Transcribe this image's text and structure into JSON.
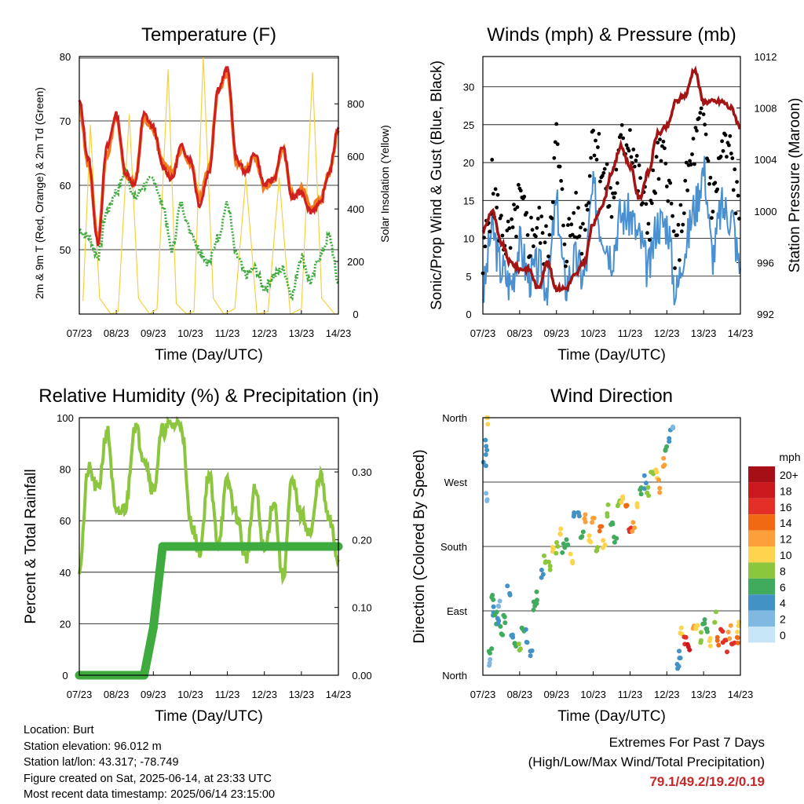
{
  "xaxis_ticks": [
    "07/23",
    "08/23",
    "09/23",
    "10/23",
    "11/23",
    "12/23",
    "13/23",
    "14/23"
  ],
  "chart_data": [
    {
      "id": "temperature",
      "type": "line",
      "title": "Temperature (F)",
      "xlabel": "Time (Day/UTC)",
      "ylabel": "2m & 9m T (Red, Orange) & 2m Td (Green)",
      "ylabel_right": "Solar Insolation (Yellow)",
      "ylim": [
        40,
        80
      ],
      "yticks": [
        50,
        60,
        70,
        80
      ],
      "ylim_right": [
        0,
        980
      ],
      "yticks_right": [
        0,
        200,
        400,
        600,
        800
      ],
      "x_days": [
        0,
        0.25,
        0.5,
        0.75,
        1,
        1.25,
        1.5,
        1.75,
        2,
        2.25,
        2.5,
        2.75,
        3,
        3.25,
        3.5,
        3.75,
        4,
        4.25,
        4.5,
        4.75,
        5,
        5.25,
        5.5,
        5.75,
        6,
        6.25,
        6.5,
        6.75,
        7
      ],
      "series": [
        {
          "name": "2m T",
          "color": "#d01f1f",
          "values": [
            73,
            64,
            51,
            66,
            71,
            62,
            60,
            71,
            69,
            63,
            61,
            66,
            64,
            57,
            62,
            75,
            78,
            64,
            62,
            65,
            60,
            61,
            66,
            58,
            59,
            56,
            57,
            62,
            69
          ]
        },
        {
          "name": "9m T",
          "color": "#f47a1f",
          "values": [
            72.5,
            63,
            52,
            65,
            70.5,
            61.5,
            60.5,
            70.5,
            68.5,
            63.5,
            62,
            65.5,
            63.5,
            58,
            62.5,
            74.5,
            77.5,
            63.5,
            62.5,
            64.5,
            59.5,
            61,
            65.5,
            58.5,
            59.5,
            56.5,
            57.5,
            62,
            68.5
          ]
        },
        {
          "name": "2m Td",
          "color": "#3fab3f",
          "values": [
            53,
            52,
            49,
            56,
            59,
            62,
            58,
            60,
            61,
            57,
            50,
            57,
            53,
            50,
            48,
            52,
            57,
            49,
            46,
            47,
            44,
            46,
            47,
            43,
            49,
            45,
            49,
            52,
            45
          ]
        },
        {
          "name": "Solar Insolation",
          "color": "#f5d142",
          "axis": "right",
          "values": [
            [
              0.1,
              50
            ],
            [
              0.3,
              720
            ],
            [
              0.55,
              60
            ],
            [
              0.85,
              0
            ],
            [
              1.05,
              10
            ],
            [
              1.35,
              760
            ],
            [
              1.6,
              60
            ],
            [
              1.9,
              0
            ],
            [
              2.1,
              20
            ],
            [
              2.4,
              930
            ],
            [
              2.62,
              40
            ],
            [
              2.9,
              0
            ],
            [
              3.1,
              10
            ],
            [
              3.35,
              980
            ],
            [
              3.62,
              60
            ],
            [
              3.9,
              0
            ],
            [
              4.2,
              20
            ],
            [
              4.5,
              520
            ],
            [
              4.8,
              0
            ],
            [
              5.1,
              10
            ],
            [
              5.4,
              520
            ],
            [
              5.7,
              0
            ],
            [
              6.0,
              20
            ],
            [
              6.3,
              920
            ],
            [
              6.55,
              60
            ],
            [
              6.9,
              0
            ]
          ]
        }
      ]
    },
    {
      "id": "winds",
      "type": "line",
      "title": "Winds (mph) & Pressure (mb)",
      "xlabel": "Time (Day/UTC)",
      "ylabel": "Sonic/Prop Wind & Gust (Blue, Black)",
      "ylabel_right": "Station Pressure (Maroon)",
      "ylim": [
        0,
        34
      ],
      "yticks": [
        0,
        5,
        10,
        15,
        20,
        25,
        30
      ],
      "ylim_right": [
        992,
        1012
      ],
      "yticks_right": [
        992,
        996,
        1000,
        1004,
        1008,
        1012
      ],
      "x_days": [
        0,
        0.25,
        0.5,
        0.75,
        1,
        1.25,
        1.5,
        1.75,
        2,
        2.25,
        2.5,
        2.75,
        3,
        3.25,
        3.5,
        3.75,
        4,
        4.25,
        4.5,
        4.75,
        5,
        5.25,
        5.5,
        5.75,
        6,
        6.25,
        6.5,
        6.75,
        7
      ],
      "series": [
        {
          "name": "Wind",
          "color": "#4a90d0",
          "values": [
            3,
            11,
            6,
            4,
            9,
            5,
            6,
            4,
            14,
            4,
            7,
            5,
            16,
            11,
            8,
            13,
            13,
            10,
            6,
            12,
            12,
            3,
            9,
            14,
            19,
            8,
            14,
            13,
            6
          ]
        },
        {
          "name": "Gust",
          "color": "#000000",
          "values": [
            6,
            17,
            11,
            9,
            15,
            10,
            12,
            8,
            23,
            9,
            13,
            10,
            25,
            19,
            14,
            22,
            24,
            17,
            12,
            20,
            20,
            7,
            16,
            22,
            26,
            14,
            22,
            21,
            11
          ]
        },
        {
          "name": "Pressure",
          "color": "#a31515",
          "axis": "right",
          "values": [
            998.5,
            1000,
            997.5,
            996,
            995.5,
            995.5,
            994,
            996,
            994,
            994,
            995,
            996,
            999,
            1000.5,
            1003,
            1005,
            1003.5,
            1001,
            1003,
            1006,
            1006.5,
            1008.5,
            1009,
            1011,
            1008.5,
            1008.5,
            1008.5,
            1008,
            1006.5
          ]
        }
      ]
    },
    {
      "id": "rh_precip",
      "type": "line",
      "title": "Relative Humidity (%) & Precipitation (in)",
      "xlabel": "Time (Day/UTC)",
      "ylabel": "Percent & Total Rainfall",
      "ylim": [
        0,
        100
      ],
      "yticks": [
        0,
        20,
        40,
        60,
        80,
        100
      ],
      "ylim_right": [
        0,
        0.38
      ],
      "yticks_right": [
        "0.00",
        "0.10",
        "0.20",
        "0.30"
      ],
      "x_days": [
        0,
        0.25,
        0.5,
        0.75,
        1,
        1.25,
        1.5,
        1.75,
        2,
        2.25,
        2.5,
        2.75,
        3,
        3.25,
        3.5,
        3.75,
        4,
        4.25,
        4.5,
        4.75,
        5,
        5.25,
        5.5,
        5.75,
        6,
        6.25,
        6.5,
        6.75,
        7
      ],
      "series": [
        {
          "name": "RH",
          "color": "#8cc63f",
          "values": [
            42,
            80,
            72,
            95,
            62,
            65,
            97,
            85,
            72,
            95,
            97,
            98,
            60,
            48,
            78,
            52,
            75,
            62,
            45,
            72,
            48,
            68,
            38,
            75,
            62,
            55,
            78,
            60,
            45
          ]
        },
        {
          "name": "Precip",
          "color": "#3fab3f",
          "axis": "right",
          "values": [
            0,
            0,
            0,
            0,
            0,
            0,
            0,
            0,
            0.07,
            0.19,
            0.19,
            0.19,
            0.19,
            0.19,
            0.19,
            0.19,
            0.19,
            0.19,
            0.19,
            0.19,
            0.19,
            0.19,
            0.19,
            0.19,
            0.19,
            0.19,
            0.19,
            0.19,
            0.19
          ]
        }
      ]
    },
    {
      "id": "wind_direction",
      "type": "scatter",
      "title": "Wind Direction",
      "xlabel": "Time (Day/UTC)",
      "ylabel": "Direction (Colored By Speed)",
      "yticks": [
        "North",
        "East",
        "South",
        "West",
        "North"
      ],
      "ylim_deg": [
        0,
        360
      ],
      "colorbar_title": "mph",
      "colorbar_labels": [
        "20+",
        "18",
        "16",
        "14",
        "12",
        "10",
        "8",
        "6",
        "4",
        "2",
        "0"
      ],
      "colorbar_colors": [
        "#a50f15",
        "#cb181d",
        "#e32f27",
        "#f16913",
        "#fd9f3a",
        "#fdd44e",
        "#8cc63f",
        "#41ab5d",
        "#4292c6",
        "#7fb8e0",
        "#c6e6f7"
      ],
      "points_day_deg_mph": [
        [
          0.05,
          300,
          4
        ],
        [
          0.1,
          320,
          3
        ],
        [
          0.12,
          250,
          1
        ],
        [
          0.15,
          355,
          9
        ],
        [
          0.18,
          20,
          2
        ],
        [
          0.2,
          40,
          6
        ],
        [
          0.25,
          110,
          5
        ],
        [
          0.3,
          90,
          3
        ],
        [
          0.35,
          80,
          5
        ],
        [
          0.4,
          70,
          4
        ],
        [
          0.45,
          100,
          2
        ],
        [
          0.5,
          60,
          6
        ],
        [
          0.6,
          75,
          5
        ],
        [
          0.7,
          120,
          3
        ],
        [
          0.8,
          50,
          4
        ],
        [
          0.9,
          35,
          6
        ],
        [
          1.0,
          45,
          8
        ],
        [
          1.1,
          70,
          5
        ],
        [
          1.2,
          55,
          4
        ],
        [
          1.3,
          30,
          3
        ],
        [
          1.4,
          95,
          6
        ],
        [
          1.5,
          110,
          5
        ],
        [
          1.6,
          140,
          4
        ],
        [
          1.7,
          160,
          7
        ],
        [
          1.8,
          150,
          8
        ],
        [
          1.9,
          170,
          9
        ],
        [
          2.0,
          180,
          8
        ],
        [
          2.1,
          200,
          10
        ],
        [
          2.2,
          175,
          6
        ],
        [
          2.3,
          190,
          5
        ],
        [
          2.4,
          160,
          9
        ],
        [
          2.5,
          220,
          4
        ],
        [
          2.6,
          230,
          3
        ],
        [
          2.7,
          200,
          6
        ],
        [
          2.8,
          215,
          12
        ],
        [
          2.9,
          195,
          10
        ],
        [
          3.0,
          210,
          11
        ],
        [
          3.1,
          180,
          7
        ],
        [
          3.2,
          200,
          13
        ],
        [
          3.3,
          185,
          10
        ],
        [
          3.4,
          230,
          8
        ],
        [
          3.5,
          210,
          6
        ],
        [
          3.6,
          190,
          5
        ],
        [
          3.7,
          240,
          8
        ],
        [
          3.8,
          250,
          10
        ],
        [
          3.9,
          230,
          14
        ],
        [
          4.0,
          210,
          15
        ],
        [
          4.1,
          205,
          12
        ],
        [
          4.2,
          245,
          9
        ],
        [
          4.3,
          260,
          5
        ],
        [
          4.4,
          270,
          3
        ],
        [
          4.5,
          260,
          8
        ],
        [
          4.6,
          275,
          7
        ],
        [
          4.7,
          280,
          10
        ],
        [
          4.8,
          265,
          12
        ],
        [
          4.9,
          300,
          11
        ],
        [
          5.0,
          320,
          6
        ],
        [
          5.1,
          335,
          4
        ],
        [
          5.2,
          350,
          2
        ],
        [
          5.3,
          10,
          3
        ],
        [
          5.35,
          30,
          4
        ],
        [
          5.4,
          60,
          10
        ],
        [
          5.5,
          50,
          15
        ],
        [
          5.6,
          45,
          17
        ],
        [
          5.7,
          70,
          12
        ],
        [
          5.8,
          65,
          9
        ],
        [
          5.9,
          55,
          7
        ],
        [
          6.0,
          75,
          5
        ],
        [
          6.1,
          60,
          6
        ],
        [
          6.2,
          50,
          9
        ],
        [
          6.3,
          80,
          8
        ],
        [
          6.4,
          45,
          13
        ],
        [
          6.5,
          55,
          16
        ],
        [
          6.6,
          40,
          15
        ],
        [
          6.7,
          60,
          12
        ],
        [
          6.8,
          45,
          16
        ],
        [
          6.9,
          50,
          14
        ],
        [
          6.95,
          65,
          10
        ]
      ]
    }
  ],
  "info": {
    "location": "Location: Burt",
    "elevation": "Station elevation: 96.012 m",
    "latlon": "Station lat/lon: 43.317; -78.749",
    "created": "Figure created on Sat, 2025-06-14, at 23:33 UTC",
    "recent": "Most recent data timestamp: 2025/06/14 23:15:00"
  },
  "extremes": {
    "title": "Extremes For Past 7 Days",
    "subtitle": "(High/Low/Max Wind/Total Precipitation)",
    "values": "79.1/49.2/19.2/0.19"
  }
}
